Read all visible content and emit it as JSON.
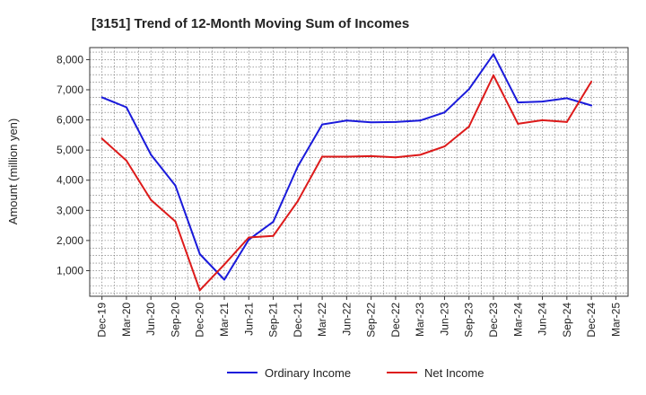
{
  "chart_data": {
    "type": "line",
    "title": "[3151]  Trend of 12-Month Moving Sum of Incomes",
    "xlabel": "",
    "ylabel": "Amount (million yen)",
    "ylim": [
      150,
      8400
    ],
    "yticks": [
      1000,
      2000,
      3000,
      4000,
      5000,
      6000,
      7000,
      8000
    ],
    "ytick_labels": [
      "1,000",
      "2,000",
      "3,000",
      "4,000",
      "5,000",
      "6,000",
      "7,000",
      "8,000"
    ],
    "grid": true,
    "legend_position": "bottom",
    "categories": [
      "Dec-19",
      "Mar-20",
      "Jun-20",
      "Sep-20",
      "Dec-20",
      "Mar-21",
      "Jun-21",
      "Sep-21",
      "Dec-21",
      "Mar-22",
      "Jun-22",
      "Sep-22",
      "Dec-22",
      "Mar-23",
      "Jun-23",
      "Sep-23",
      "Dec-23",
      "Mar-24",
      "Jun-24",
      "Sep-24",
      "Dec-24",
      "Mar-25"
    ],
    "series": [
      {
        "name": "Ordinary Income",
        "color": "#1a1adb",
        "values": [
          6750,
          6420,
          4850,
          3820,
          1550,
          700,
          2030,
          2620,
          4450,
          5850,
          5980,
          5920,
          5930,
          5980,
          6250,
          7020,
          8180,
          6580,
          6610,
          6720,
          6480,
          null
        ]
      },
      {
        "name": "Net Income",
        "color": "#dd1a1a",
        "values": [
          5380,
          4650,
          3350,
          2630,
          350,
          1200,
          2100,
          2150,
          3300,
          4780,
          4780,
          4800,
          4760,
          4840,
          5120,
          5780,
          7480,
          5870,
          5990,
          5930,
          7270,
          null
        ]
      }
    ]
  }
}
